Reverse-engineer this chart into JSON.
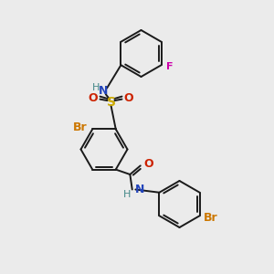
{
  "bg_color": "#ebebeb",
  "bond_color": "#1a1a1a",
  "colors": {
    "N": "#2244bb",
    "O": "#cc2200",
    "S": "#ccaa00",
    "Br": "#cc7700",
    "F": "#cc00aa",
    "H": "#448888",
    "C": "#1a1a1a"
  },
  "figsize": [
    3.0,
    3.0
  ],
  "dpi": 100
}
